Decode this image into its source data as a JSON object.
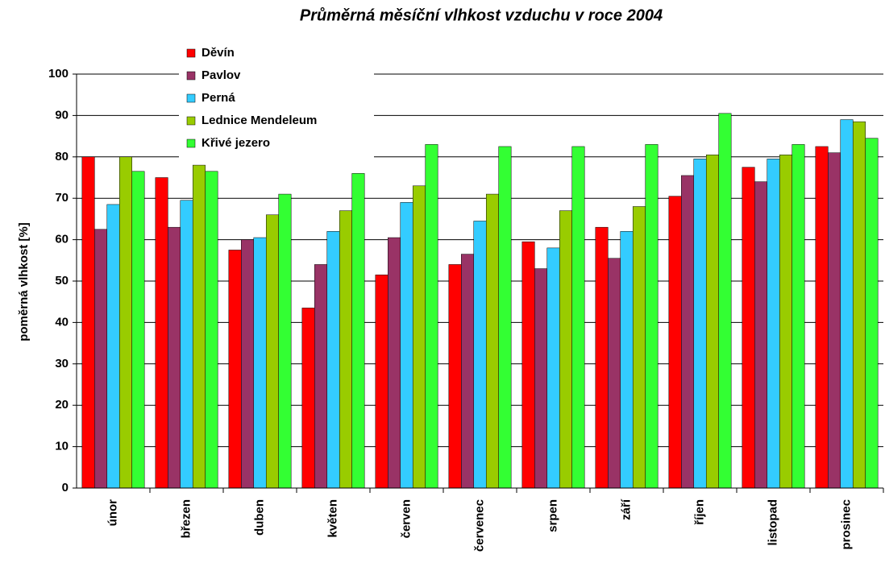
{
  "chart_data": {
    "type": "bar",
    "title": "Průměrná měsíční vlhkost vzduchu v roce 2004",
    "y_label": "poměrná vlhkost [%]",
    "categories": [
      "únor",
      "březen",
      "duben",
      "květen",
      "červen",
      "červenec",
      "srpen",
      "září",
      "říjen",
      "listopad",
      "prosinec"
    ],
    "series": [
      {
        "name": "Děvín",
        "color": "#ff0000",
        "values": [
          80,
          75,
          57.5,
          43.5,
          51.5,
          54,
          59.5,
          63,
          70.5,
          77.5,
          82.5
        ]
      },
      {
        "name": "Pavlov",
        "color": "#993366",
        "values": [
          62.5,
          63,
          60,
          54,
          60.5,
          56.5,
          53,
          55.5,
          75.5,
          74,
          81
        ]
      },
      {
        "name": "Perná",
        "color": "#33ccff",
        "values": [
          68.5,
          69.5,
          60.5,
          62,
          69,
          64.5,
          58,
          62,
          79.5,
          79.5,
          89
        ]
      },
      {
        "name": "Lednice Mendeleum",
        "color": "#99cc00",
        "values": [
          80,
          78,
          66,
          67,
          73,
          71,
          67,
          68,
          80.5,
          80.5,
          88.5
        ]
      },
      {
        "name": "Křivé jezero",
        "color": "#33ff33",
        "values": [
          76.5,
          76.5,
          71,
          76,
          83,
          82.5,
          82.5,
          83,
          90.5,
          83,
          84.5
        ]
      }
    ],
    "ylim": [
      0,
      100
    ],
    "yticks": [
      0,
      10,
      20,
      30,
      40,
      50,
      60,
      70,
      80,
      90,
      100
    ],
    "grid": true,
    "legend": "top-left"
  }
}
